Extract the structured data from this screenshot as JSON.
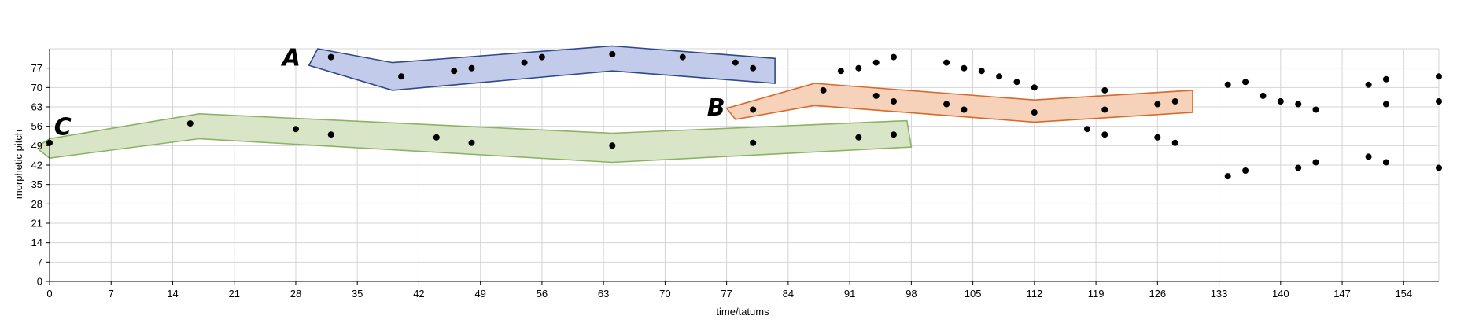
{
  "chart_data": {
    "type": "scatter",
    "xlabel": "time/tatums",
    "ylabel": "morphetic pitch",
    "xlim": [
      0,
      158
    ],
    "ylim": [
      0,
      84
    ],
    "xticks": [
      0,
      7,
      14,
      21,
      28,
      35,
      42,
      49,
      56,
      63,
      70,
      77,
      84,
      91,
      98,
      105,
      112,
      119,
      126,
      133,
      140,
      147,
      154
    ],
    "yticks": [
      0,
      7,
      14,
      21,
      28,
      35,
      42,
      49,
      56,
      63,
      70,
      77
    ],
    "grid": true,
    "point_color": "#000000",
    "points": [
      {
        "x": 0,
        "y": 50
      },
      {
        "x": 16,
        "y": 57
      },
      {
        "x": 28,
        "y": 55
      },
      {
        "x": 32,
        "y": 53
      },
      {
        "x": 32,
        "y": 81
      },
      {
        "x": 40,
        "y": 74
      },
      {
        "x": 44,
        "y": 52
      },
      {
        "x": 46,
        "y": 76
      },
      {
        "x": 48,
        "y": 77
      },
      {
        "x": 48,
        "y": 50
      },
      {
        "x": 54,
        "y": 79
      },
      {
        "x": 56,
        "y": 81
      },
      {
        "x": 64,
        "y": 82
      },
      {
        "x": 64,
        "y": 49
      },
      {
        "x": 72,
        "y": 81
      },
      {
        "x": 78,
        "y": 79
      },
      {
        "x": 80,
        "y": 77
      },
      {
        "x": 80,
        "y": 62
      },
      {
        "x": 80,
        "y": 50
      },
      {
        "x": 88,
        "y": 69
      },
      {
        "x": 90,
        "y": 76
      },
      {
        "x": 92,
        "y": 77
      },
      {
        "x": 92,
        "y": 52
      },
      {
        "x": 94,
        "y": 79
      },
      {
        "x": 94,
        "y": 67
      },
      {
        "x": 96,
        "y": 81
      },
      {
        "x": 96,
        "y": 65
      },
      {
        "x": 96,
        "y": 53
      },
      {
        "x": 102,
        "y": 79
      },
      {
        "x": 102,
        "y": 64
      },
      {
        "x": 104,
        "y": 77
      },
      {
        "x": 104,
        "y": 62
      },
      {
        "x": 106,
        "y": 76
      },
      {
        "x": 108,
        "y": 74
      },
      {
        "x": 110,
        "y": 72
      },
      {
        "x": 112,
        "y": 70
      },
      {
        "x": 112,
        "y": 61
      },
      {
        "x": 118,
        "y": 55
      },
      {
        "x": 120,
        "y": 69
      },
      {
        "x": 120,
        "y": 62
      },
      {
        "x": 120,
        "y": 53
      },
      {
        "x": 126,
        "y": 64
      },
      {
        "x": 126,
        "y": 52
      },
      {
        "x": 128,
        "y": 65
      },
      {
        "x": 128,
        "y": 50
      },
      {
        "x": 134,
        "y": 71
      },
      {
        "x": 134,
        "y": 38
      },
      {
        "x": 136,
        "y": 72
      },
      {
        "x": 136,
        "y": 40
      },
      {
        "x": 138,
        "y": 67
      },
      {
        "x": 140,
        "y": 65
      },
      {
        "x": 142,
        "y": 64
      },
      {
        "x": 142,
        "y": 41
      },
      {
        "x": 144,
        "y": 62
      },
      {
        "x": 144,
        "y": 43
      },
      {
        "x": 150,
        "y": 71
      },
      {
        "x": 150,
        "y": 45
      },
      {
        "x": 152,
        "y": 73
      },
      {
        "x": 152,
        "y": 64
      },
      {
        "x": 152,
        "y": 43
      },
      {
        "x": 158,
        "y": 74
      },
      {
        "x": 158,
        "y": 65
      },
      {
        "x": 158,
        "y": 41
      }
    ],
    "regions": [
      {
        "label": "A",
        "fill": "#c3cbea",
        "stroke": "#2f4a8a",
        "polygon": [
          [
            29.5,
            78
          ],
          [
            30.5,
            84
          ],
          [
            39,
            79
          ],
          [
            64,
            85
          ],
          [
            82.5,
            80.5
          ],
          [
            82.5,
            71.5
          ],
          [
            64,
            76
          ],
          [
            39,
            69
          ]
        ],
        "label_x": 27.5,
        "label_y": 81
      },
      {
        "label": "B",
        "fill": "#f6d2ba",
        "stroke": "#d8692a",
        "polygon": [
          [
            77,
            62.5
          ],
          [
            87,
            71.5
          ],
          [
            112,
            65.5
          ],
          [
            130,
            69
          ],
          [
            130,
            61
          ],
          [
            112,
            57.5
          ],
          [
            87,
            63.5
          ],
          [
            78,
            58.5
          ]
        ],
        "label_x": 75.8,
        "label_y": 63
      },
      {
        "label": "C",
        "fill": "#d8e5c6",
        "stroke": "#8cb266",
        "polygon": [
          [
            -1.2,
            49
          ],
          [
            0,
            51.5
          ],
          [
            17,
            60.5
          ],
          [
            64,
            53.5
          ],
          [
            97.5,
            58
          ],
          [
            98,
            48.5
          ],
          [
            64,
            43
          ],
          [
            17,
            51.5
          ],
          [
            0,
            44.5
          ],
          [
            -1.2,
            47.5
          ]
        ],
        "label_x": 1.5,
        "label_y": 56
      }
    ]
  }
}
